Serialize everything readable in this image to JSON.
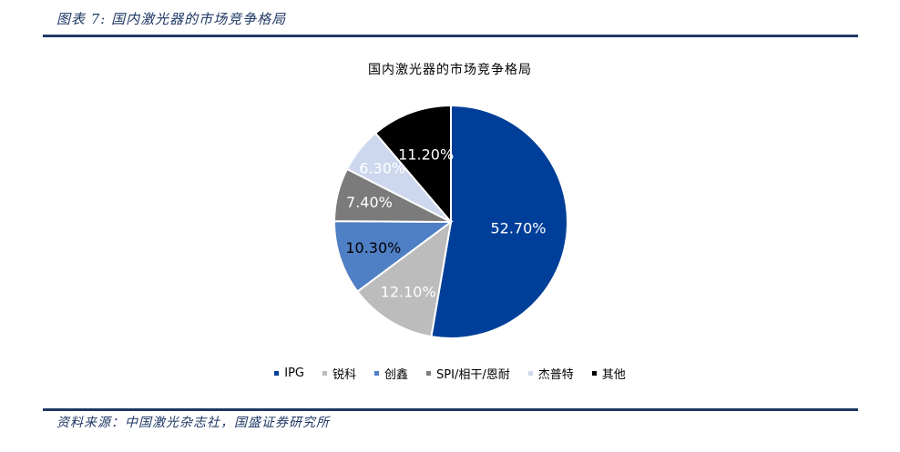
{
  "figure_caption": "图表 7:  国内激光器的市场竞争格局",
  "source_note": "资料来源：中国激光杂志社，国盛证券研究所",
  "chart_data": {
    "type": "pie",
    "title": "国内激光器的市场竞争格局",
    "legend_position": "bottom",
    "slices": [
      {
        "name": "IPG",
        "value": 52.7,
        "label": "52.70%",
        "color": "#003f99",
        "label_color": "#ffffff"
      },
      {
        "name": "锐科",
        "value": 12.1,
        "label": "12.10%",
        "color": "#bcbcbc",
        "label_color": "#ffffff"
      },
      {
        "name": "创鑫",
        "value": 10.3,
        "label": "10.30%",
        "color": "#4f7fc4",
        "label_color": "#000000"
      },
      {
        "name": "SPI/相干/恩耐",
        "value": 7.4,
        "label": "7.40%",
        "color": "#7b7b7b",
        "label_color": "#ffffff"
      },
      {
        "name": "杰普特",
        "value": 6.3,
        "label": "6.30%",
        "color": "#cdd8ee",
        "label_color": "#ffffff"
      },
      {
        "name": "其他",
        "value": 11.2,
        "label": "11.20%",
        "color": "#000000",
        "label_color": "#ffffff"
      }
    ]
  }
}
